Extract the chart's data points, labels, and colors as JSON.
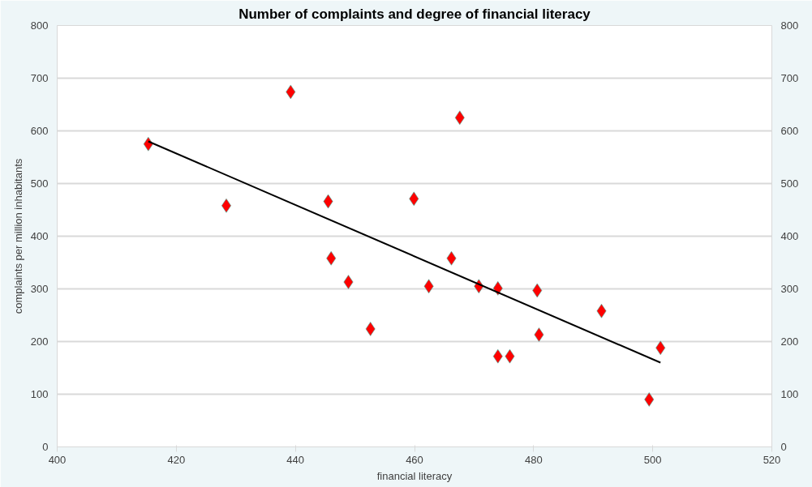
{
  "chart_data": {
    "type": "scatter",
    "title": "Number of complaints and degree of financial literacy",
    "xlabel": "financial literacy",
    "ylabel": "complaints per million inhabitants",
    "xlim": [
      400,
      520
    ],
    "xticks": [
      400,
      420,
      440,
      460,
      480,
      500,
      520
    ],
    "ylim": [
      0,
      800
    ],
    "yticks": [
      0,
      100,
      200,
      300,
      400,
      500,
      600,
      700,
      800
    ],
    "y2lim": [
      0,
      800
    ],
    "y2ticks": [
      0,
      100,
      200,
      300,
      400,
      500,
      600,
      700,
      800
    ],
    "grid": "y",
    "marker": "diamond",
    "series": [
      {
        "color": "#ff0000",
        "x": [
          415.3,
          428.4,
          439.2,
          445.5,
          446.0,
          448.9,
          452.6,
          459.9,
          462.4,
          466.2,
          467.6,
          470.8,
          474.0,
          474.0,
          476.0,
          480.6,
          480.9,
          491.4,
          499.4,
          501.3
        ],
        "values": [
          575,
          458,
          674,
          466,
          358,
          313,
          224,
          471,
          305,
          358,
          625,
          305,
          301,
          172,
          172,
          297,
          213,
          258,
          90,
          188
        ]
      },
      {
        "type": "line",
        "color": "#000000",
        "marker": "none",
        "line_style": "solid",
        "x": [
          415.3,
          501.3
        ],
        "values": [
          580,
          160
        ]
      }
    ]
  }
}
